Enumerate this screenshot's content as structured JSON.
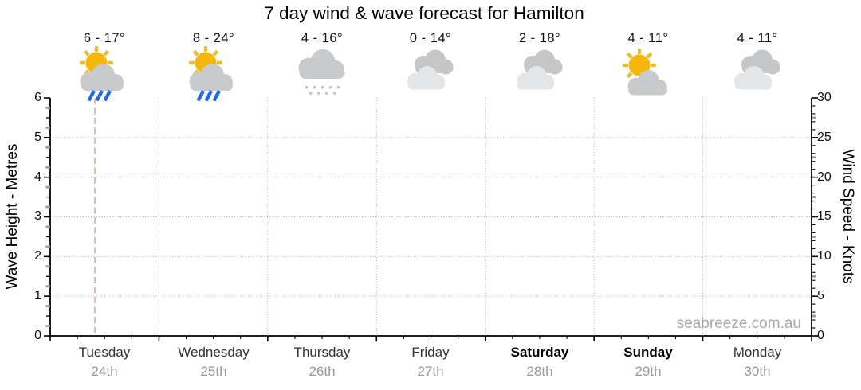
{
  "title": "7 day wind & wave forecast for Hamilton",
  "watermark": "seabreeze.com.au",
  "axes": {
    "left": {
      "label": "Wave Height - Metres",
      "tick_labels": [
        "6",
        "5",
        "4",
        "3",
        "2",
        "1",
        "0"
      ]
    },
    "right": {
      "label": "Wind Speed - Knots",
      "tick_labels": [
        "30",
        "25",
        "20",
        "15",
        "10",
        "5",
        "0"
      ]
    }
  },
  "days": [
    {
      "name": "Tuesday",
      "date": "24th",
      "temp": "6 - 17°",
      "icon": "sun-cloud-rain-icon",
      "bold": false
    },
    {
      "name": "Wednesday",
      "date": "25th",
      "temp": "8 - 24°",
      "icon": "sun-cloud-rain-icon",
      "bold": false
    },
    {
      "name": "Thursday",
      "date": "26th",
      "temp": "4 - 16°",
      "icon": "cloud-drizzle-icon",
      "bold": false
    },
    {
      "name": "Friday",
      "date": "27th",
      "temp": "0 - 14°",
      "icon": "cloudy-icon",
      "bold": false
    },
    {
      "name": "Saturday",
      "date": "28th",
      "temp": "2 - 18°",
      "icon": "cloudy-icon",
      "bold": true
    },
    {
      "name": "Sunday",
      "date": "29th",
      "temp": "4 - 11°",
      "icon": "sun-cloud-icon",
      "bold": true
    },
    {
      "name": "Monday",
      "date": "30th",
      "temp": "4 - 11°",
      "icon": "cloudy-icon",
      "bold": false
    }
  ],
  "current_time_marker": {
    "day": "Tuesday",
    "day_fraction": 0.41,
    "color": "#f2a29a"
  },
  "colors": {
    "sun": "#F5B80A",
    "sun_ray": "#EDBC2D",
    "cloud": "#C9CACB",
    "cloud_back": "#C5C6C8",
    "cloud_front": "#E4E5E6",
    "rain": "#2368E1",
    "drizzle_dot": "#C7C8C9",
    "gridline": "#aaaaaa",
    "axis": "#000000",
    "date_text": "#999999",
    "watermark_text": "#a8a8a8",
    "marker": "#f2a29a"
  },
  "chart_data": {
    "type": "line",
    "title": "7 day wind & wave forecast for Hamilton",
    "categories": [
      "Tuesday 24th",
      "Wednesday 25th",
      "Thursday 26th",
      "Friday 27th",
      "Saturday 28th",
      "Sunday 29th",
      "Monday 30th"
    ],
    "y_left": {
      "label": "Wave Height - Metres",
      "range": [
        0,
        6
      ],
      "ticks": [
        0,
        1,
        2,
        3,
        4,
        5,
        6
      ]
    },
    "y_right": {
      "label": "Wind Speed - Knots",
      "range": [
        0,
        30
      ],
      "ticks": [
        0,
        5,
        10,
        15,
        20,
        25,
        30
      ]
    },
    "series": [],
    "grid": true,
    "legend": false,
    "per_day_forecast": [
      {
        "day": "Tuesday",
        "date": "24th",
        "temp_range_c": "6 - 17°",
        "condition": "sun-cloud-rain"
      },
      {
        "day": "Wednesday",
        "date": "25th",
        "temp_range_c": "8 - 24°",
        "condition": "sun-cloud-rain"
      },
      {
        "day": "Thursday",
        "date": "26th",
        "temp_range_c": "4 - 16°",
        "condition": "cloud-drizzle"
      },
      {
        "day": "Friday",
        "date": "27th",
        "temp_range_c": "0 - 14°",
        "condition": "cloudy"
      },
      {
        "day": "Saturday",
        "date": "28th",
        "temp_range_c": "2 - 18°",
        "condition": "cloudy"
      },
      {
        "day": "Sunday",
        "date": "29th",
        "temp_range_c": "4 - 11°",
        "condition": "sun-cloud"
      },
      {
        "day": "Monday",
        "date": "30th",
        "temp_range_c": "4 - 11°",
        "condition": "cloudy"
      }
    ]
  }
}
